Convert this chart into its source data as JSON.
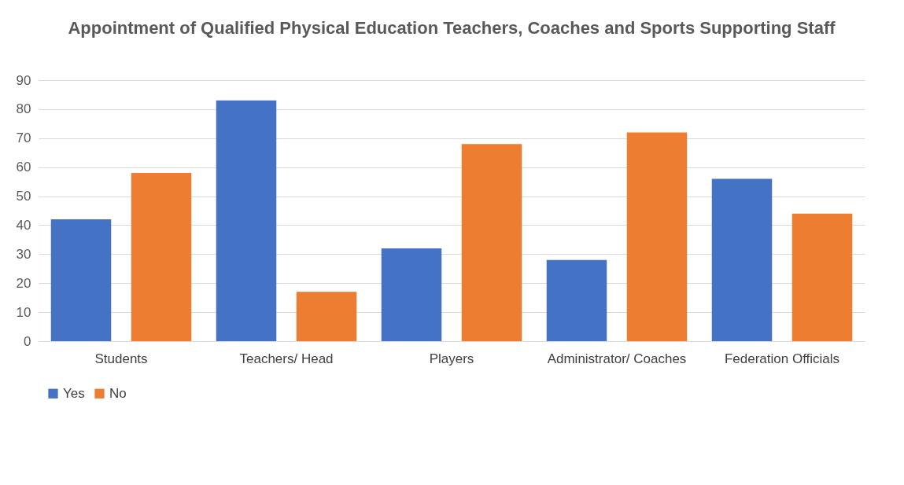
{
  "chart_data": {
    "type": "bar",
    "title": "Appointment of Qualified Physical Education Teachers, Coaches and Sports Supporting Staff",
    "categories": [
      "Students",
      "Teachers/ Head",
      "Players",
      "Administrator/ Coaches",
      "Federation Officials"
    ],
    "series": [
      {
        "name": "Yes",
        "color": "#4472c4",
        "values": [
          42,
          83,
          32,
          28,
          56
        ]
      },
      {
        "name": "No",
        "color": "#ed7d31",
        "values": [
          58,
          17,
          68,
          72,
          44
        ]
      }
    ],
    "ylim": [
      0,
      90
    ],
    "yticks": [
      0,
      10,
      20,
      30,
      40,
      50,
      60,
      70,
      80,
      90
    ],
    "grid": "y",
    "legend": "bottom"
  }
}
